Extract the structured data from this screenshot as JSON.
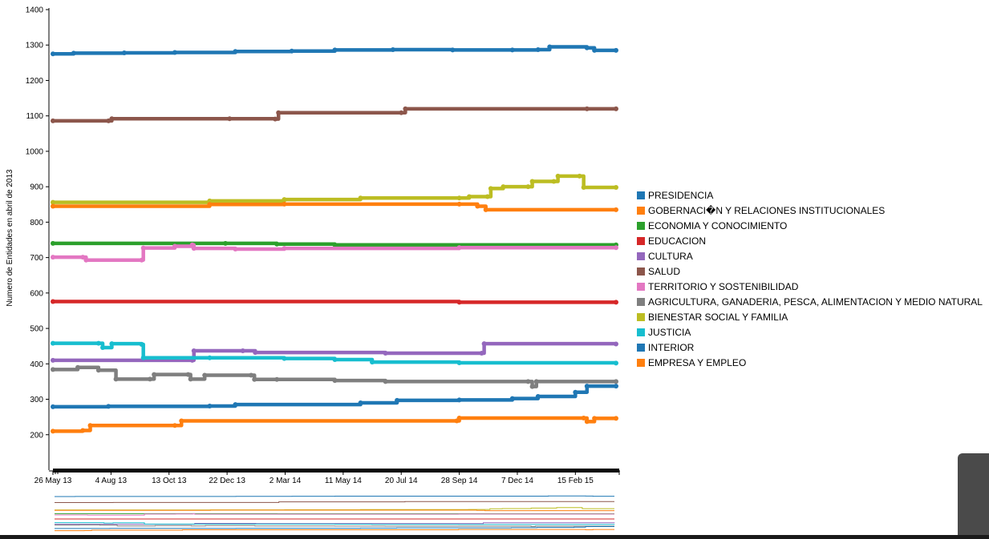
{
  "chart_data": {
    "type": "line",
    "ylabel": "Numero de Entidades en abril de 2013",
    "xlabel": "",
    "ylim": [
      100,
      1400
    ],
    "yticks": [
      200,
      300,
      400,
      500,
      600,
      700,
      800,
      900,
      1000,
      1100,
      1200,
      1300,
      1400
    ],
    "xlim": [
      "2013-05-26",
      "2015-04-05"
    ],
    "xticks": [
      {
        "date": "2013-05-26",
        "label": "26 May 13"
      },
      {
        "date": "2013-08-04",
        "label": "4 Aug 13"
      },
      {
        "date": "2013-10-13",
        "label": "13 Oct 13"
      },
      {
        "date": "2013-12-22",
        "label": "22 Dec 13"
      },
      {
        "date": "2014-03-02",
        "label": "2 Mar 14"
      },
      {
        "date": "2014-05-11",
        "label": "11 May 14"
      },
      {
        "date": "2014-07-20",
        "label": "20 Jul 14"
      },
      {
        "date": "2014-09-28",
        "label": "28 Sep 14"
      },
      {
        "date": "2014-12-07",
        "label": "7 Dec 14"
      },
      {
        "date": "2015-02-15",
        "label": "15 Feb 15"
      }
    ],
    "legend_position": "right",
    "series": [
      {
        "name": "PRESIDENCIA",
        "color": "#1f77b4",
        "points": [
          [
            "2013-05-26",
            1275
          ],
          [
            "2013-06-20",
            1277
          ],
          [
            "2013-08-20",
            1278
          ],
          [
            "2013-10-20",
            1279
          ],
          [
            "2014-01-01",
            1282
          ],
          [
            "2014-03-10",
            1283
          ],
          [
            "2014-05-01",
            1286
          ],
          [
            "2014-07-10",
            1287
          ],
          [
            "2014-09-20",
            1286
          ],
          [
            "2014-12-01",
            1286
          ],
          [
            "2015-01-01",
            1287
          ],
          [
            "2015-01-15",
            1295
          ],
          [
            "2015-03-01",
            1292
          ],
          [
            "2015-03-10",
            1285
          ],
          [
            "2015-04-05",
            1285
          ]
        ]
      },
      {
        "name": "GOBERNACI�N Y RELACIONES INSTITUCIONALES",
        "color": "#ff7f0e",
        "points": [
          [
            "2013-05-26",
            210
          ],
          [
            "2013-07-01",
            212
          ],
          [
            "2013-07-10",
            226
          ],
          [
            "2013-10-20",
            226
          ],
          [
            "2013-10-28",
            239
          ],
          [
            "2014-09-25",
            239
          ],
          [
            "2014-09-28",
            247
          ],
          [
            "2015-02-25",
            247
          ],
          [
            "2015-03-01",
            237
          ],
          [
            "2015-03-10",
            246
          ],
          [
            "2015-04-05",
            246
          ]
        ]
      },
      {
        "name": "ECONOMIA Y CONOCIMIENTO",
        "color": "#2ca02c",
        "points": [
          [
            "2013-05-26",
            740
          ],
          [
            "2013-12-20",
            740
          ],
          [
            "2014-02-20",
            738
          ],
          [
            "2014-05-01",
            736
          ],
          [
            "2015-04-05",
            736
          ]
        ]
      },
      {
        "name": "EDUCACION",
        "color": "#d62728",
        "points": [
          [
            "2013-05-26",
            576
          ],
          [
            "2014-09-28",
            574
          ],
          [
            "2015-04-05",
            574
          ]
        ]
      },
      {
        "name": "CULTURA",
        "color": "#9467bd",
        "points": [
          [
            "2013-05-26",
            410
          ],
          [
            "2013-11-10",
            410
          ],
          [
            "2013-11-12",
            437
          ],
          [
            "2014-01-10",
            437
          ],
          [
            "2014-01-25",
            432
          ],
          [
            "2014-07-01",
            430
          ],
          [
            "2014-10-25",
            430
          ],
          [
            "2014-10-28",
            457
          ],
          [
            "2015-04-05",
            456
          ]
        ]
      },
      {
        "name": "SALUD",
        "color": "#8c564b",
        "points": [
          [
            "2013-05-26",
            1086
          ],
          [
            "2013-08-01",
            1086
          ],
          [
            "2013-08-05",
            1092
          ],
          [
            "2013-12-25",
            1092
          ],
          [
            "2014-02-18",
            1091
          ],
          [
            "2014-02-22",
            1109
          ],
          [
            "2014-07-20",
            1109
          ],
          [
            "2014-07-25",
            1120
          ],
          [
            "2015-03-01",
            1120
          ],
          [
            "2015-04-05",
            1120
          ]
        ]
      },
      {
        "name": "TERRITORIO Y SOSTENIBILIDAD",
        "color": "#e377c2",
        "points": [
          [
            "2013-05-26",
            701
          ],
          [
            "2013-07-01",
            701
          ],
          [
            "2013-07-05",
            693
          ],
          [
            "2013-09-10",
            693
          ],
          [
            "2013-09-12",
            727
          ],
          [
            "2013-10-20",
            732
          ],
          [
            "2013-11-10",
            736
          ],
          [
            "2013-11-12",
            726
          ],
          [
            "2014-01-01",
            724
          ],
          [
            "2014-03-01",
            726
          ],
          [
            "2014-09-28",
            728
          ],
          [
            "2015-04-05",
            728
          ]
        ]
      },
      {
        "name": "AGRICULTURA, GANADERIA, PESCA, ALIMENTACION Y MEDIO NATURAL",
        "color": "#7f7f7f",
        "points": [
          [
            "2013-05-26",
            384
          ],
          [
            "2013-06-25",
            390
          ],
          [
            "2013-07-20",
            382
          ],
          [
            "2013-08-10",
            357
          ],
          [
            "2013-09-20",
            357
          ],
          [
            "2013-09-25",
            370
          ],
          [
            "2013-11-05",
            370
          ],
          [
            "2013-11-08",
            357
          ],
          [
            "2013-11-25",
            368
          ],
          [
            "2014-01-20",
            368
          ],
          [
            "2014-01-24",
            356
          ],
          [
            "2014-02-20",
            356
          ],
          [
            "2014-05-01",
            353
          ],
          [
            "2014-07-01",
            350
          ],
          [
            "2014-12-20",
            350
          ],
          [
            "2014-12-25",
            336
          ],
          [
            "2014-12-30",
            350
          ],
          [
            "2015-04-05",
            350
          ]
        ]
      },
      {
        "name": "BIENESTAR SOCIAL Y FAMILIA",
        "color": "#bcbd22",
        "points": [
          [
            "2013-05-26",
            856
          ],
          [
            "2013-12-01",
            860
          ],
          [
            "2014-03-01",
            864
          ],
          [
            "2014-06-01",
            868
          ],
          [
            "2014-09-28",
            868
          ],
          [
            "2014-10-10",
            872
          ],
          [
            "2014-11-01",
            872
          ],
          [
            "2014-11-05",
            895
          ],
          [
            "2014-11-20",
            900
          ],
          [
            "2014-12-20",
            900
          ],
          [
            "2014-12-25",
            915
          ],
          [
            "2015-01-20",
            915
          ],
          [
            "2015-01-25",
            930
          ],
          [
            "2015-02-20",
            930
          ],
          [
            "2015-02-25",
            898
          ],
          [
            "2015-04-05",
            898
          ]
        ]
      },
      {
        "name": "JUSTICIA",
        "color": "#17becf",
        "points": [
          [
            "2013-05-26",
            458
          ],
          [
            "2013-07-20",
            458
          ],
          [
            "2013-07-25",
            446
          ],
          [
            "2013-08-05",
            457
          ],
          [
            "2013-09-10",
            455
          ],
          [
            "2013-09-12",
            417
          ],
          [
            "2013-12-01",
            417
          ],
          [
            "2014-03-01",
            415
          ],
          [
            "2014-05-01",
            412
          ],
          [
            "2014-06-15",
            405
          ],
          [
            "2014-09-28",
            403
          ],
          [
            "2015-04-05",
            402
          ]
        ]
      },
      {
        "name": "INTERIOR",
        "color": "#1f77b4",
        "points": [
          [
            "2013-05-26",
            279
          ],
          [
            "2013-08-01",
            280
          ],
          [
            "2013-12-01",
            281
          ],
          [
            "2014-01-01",
            285
          ],
          [
            "2014-06-01",
            290
          ],
          [
            "2014-07-15",
            297
          ],
          [
            "2014-09-28",
            298
          ],
          [
            "2014-12-01",
            302
          ],
          [
            "2015-01-01",
            308
          ],
          [
            "2015-02-15",
            320
          ],
          [
            "2015-03-01",
            337
          ],
          [
            "2015-04-05",
            337
          ]
        ]
      },
      {
        "name": "EMPRESA Y EMPLEO",
        "color": "#ff7f0e",
        "points": [
          [
            "2013-05-26",
            845
          ],
          [
            "2013-12-01",
            850
          ],
          [
            "2014-03-01",
            851
          ],
          [
            "2014-09-28",
            851
          ],
          [
            "2014-10-20",
            845
          ],
          [
            "2014-10-30",
            835
          ],
          [
            "2015-04-05",
            835
          ]
        ]
      }
    ]
  }
}
